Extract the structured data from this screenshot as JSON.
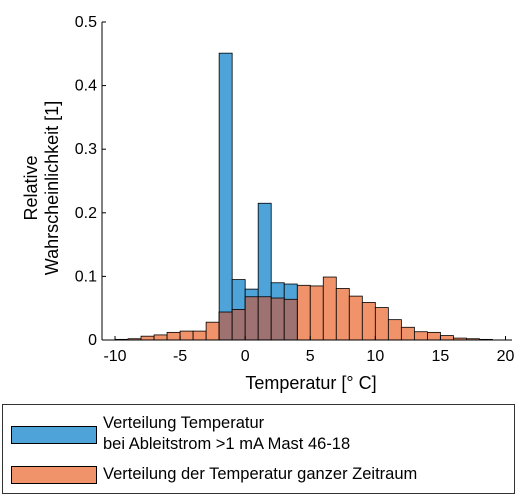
{
  "chart_data": {
    "type": "bar",
    "xlabel": "Temperatur [° C]",
    "ylabel_lines": [
      "Relative",
      "Wahrscheinlichkeit [1]"
    ],
    "xlim": [
      -11,
      20.5
    ],
    "ylim": [
      0,
      0.5
    ],
    "xticks": [
      -10,
      -5,
      0,
      5,
      10,
      15,
      20
    ],
    "yticks": [
      0,
      0.1,
      0.2,
      0.3,
      0.4,
      0.5
    ],
    "ytick_labels": [
      "0",
      "0.1",
      "0.2",
      "0.3",
      "0.4",
      "0.5"
    ],
    "bin_width": 1,
    "legend_position": "bottom",
    "series": [
      {
        "label_lines": [
          "Verteilung der Temperatur ganzer Zeitraum"
        ],
        "color": "#f0926a",
        "bin_starts": [
          -10,
          -9,
          -8,
          -7,
          -6,
          -5,
          -4,
          -3,
          -2,
          -1,
          0,
          1,
          2,
          3,
          4,
          5,
          6,
          7,
          8,
          9,
          10,
          11,
          12,
          13,
          14,
          15,
          16,
          17,
          18,
          19
        ],
        "values": [
          0.001,
          0.002,
          0.006,
          0.008,
          0.012,
          0.014,
          0.014,
          0.028,
          0.044,
          0.048,
          0.068,
          0.068,
          0.066,
          0.064,
          0.086,
          0.085,
          0.099,
          0.081,
          0.069,
          0.059,
          0.051,
          0.032,
          0.02,
          0.013,
          0.012,
          0.007,
          0.003,
          0.002,
          0.001,
          0.0
        ]
      },
      {
        "label_lines": [
          "Verteilung Temperatur",
          "bei Ableitstrom >1 mA Mast 46-18"
        ],
        "color": "#4ea4d9",
        "bin_starts": [
          -2,
          -1,
          0,
          1,
          2,
          3
        ],
        "values": [
          0.451,
          0.095,
          0.08,
          0.215,
          0.09,
          0.088
        ]
      }
    ]
  }
}
